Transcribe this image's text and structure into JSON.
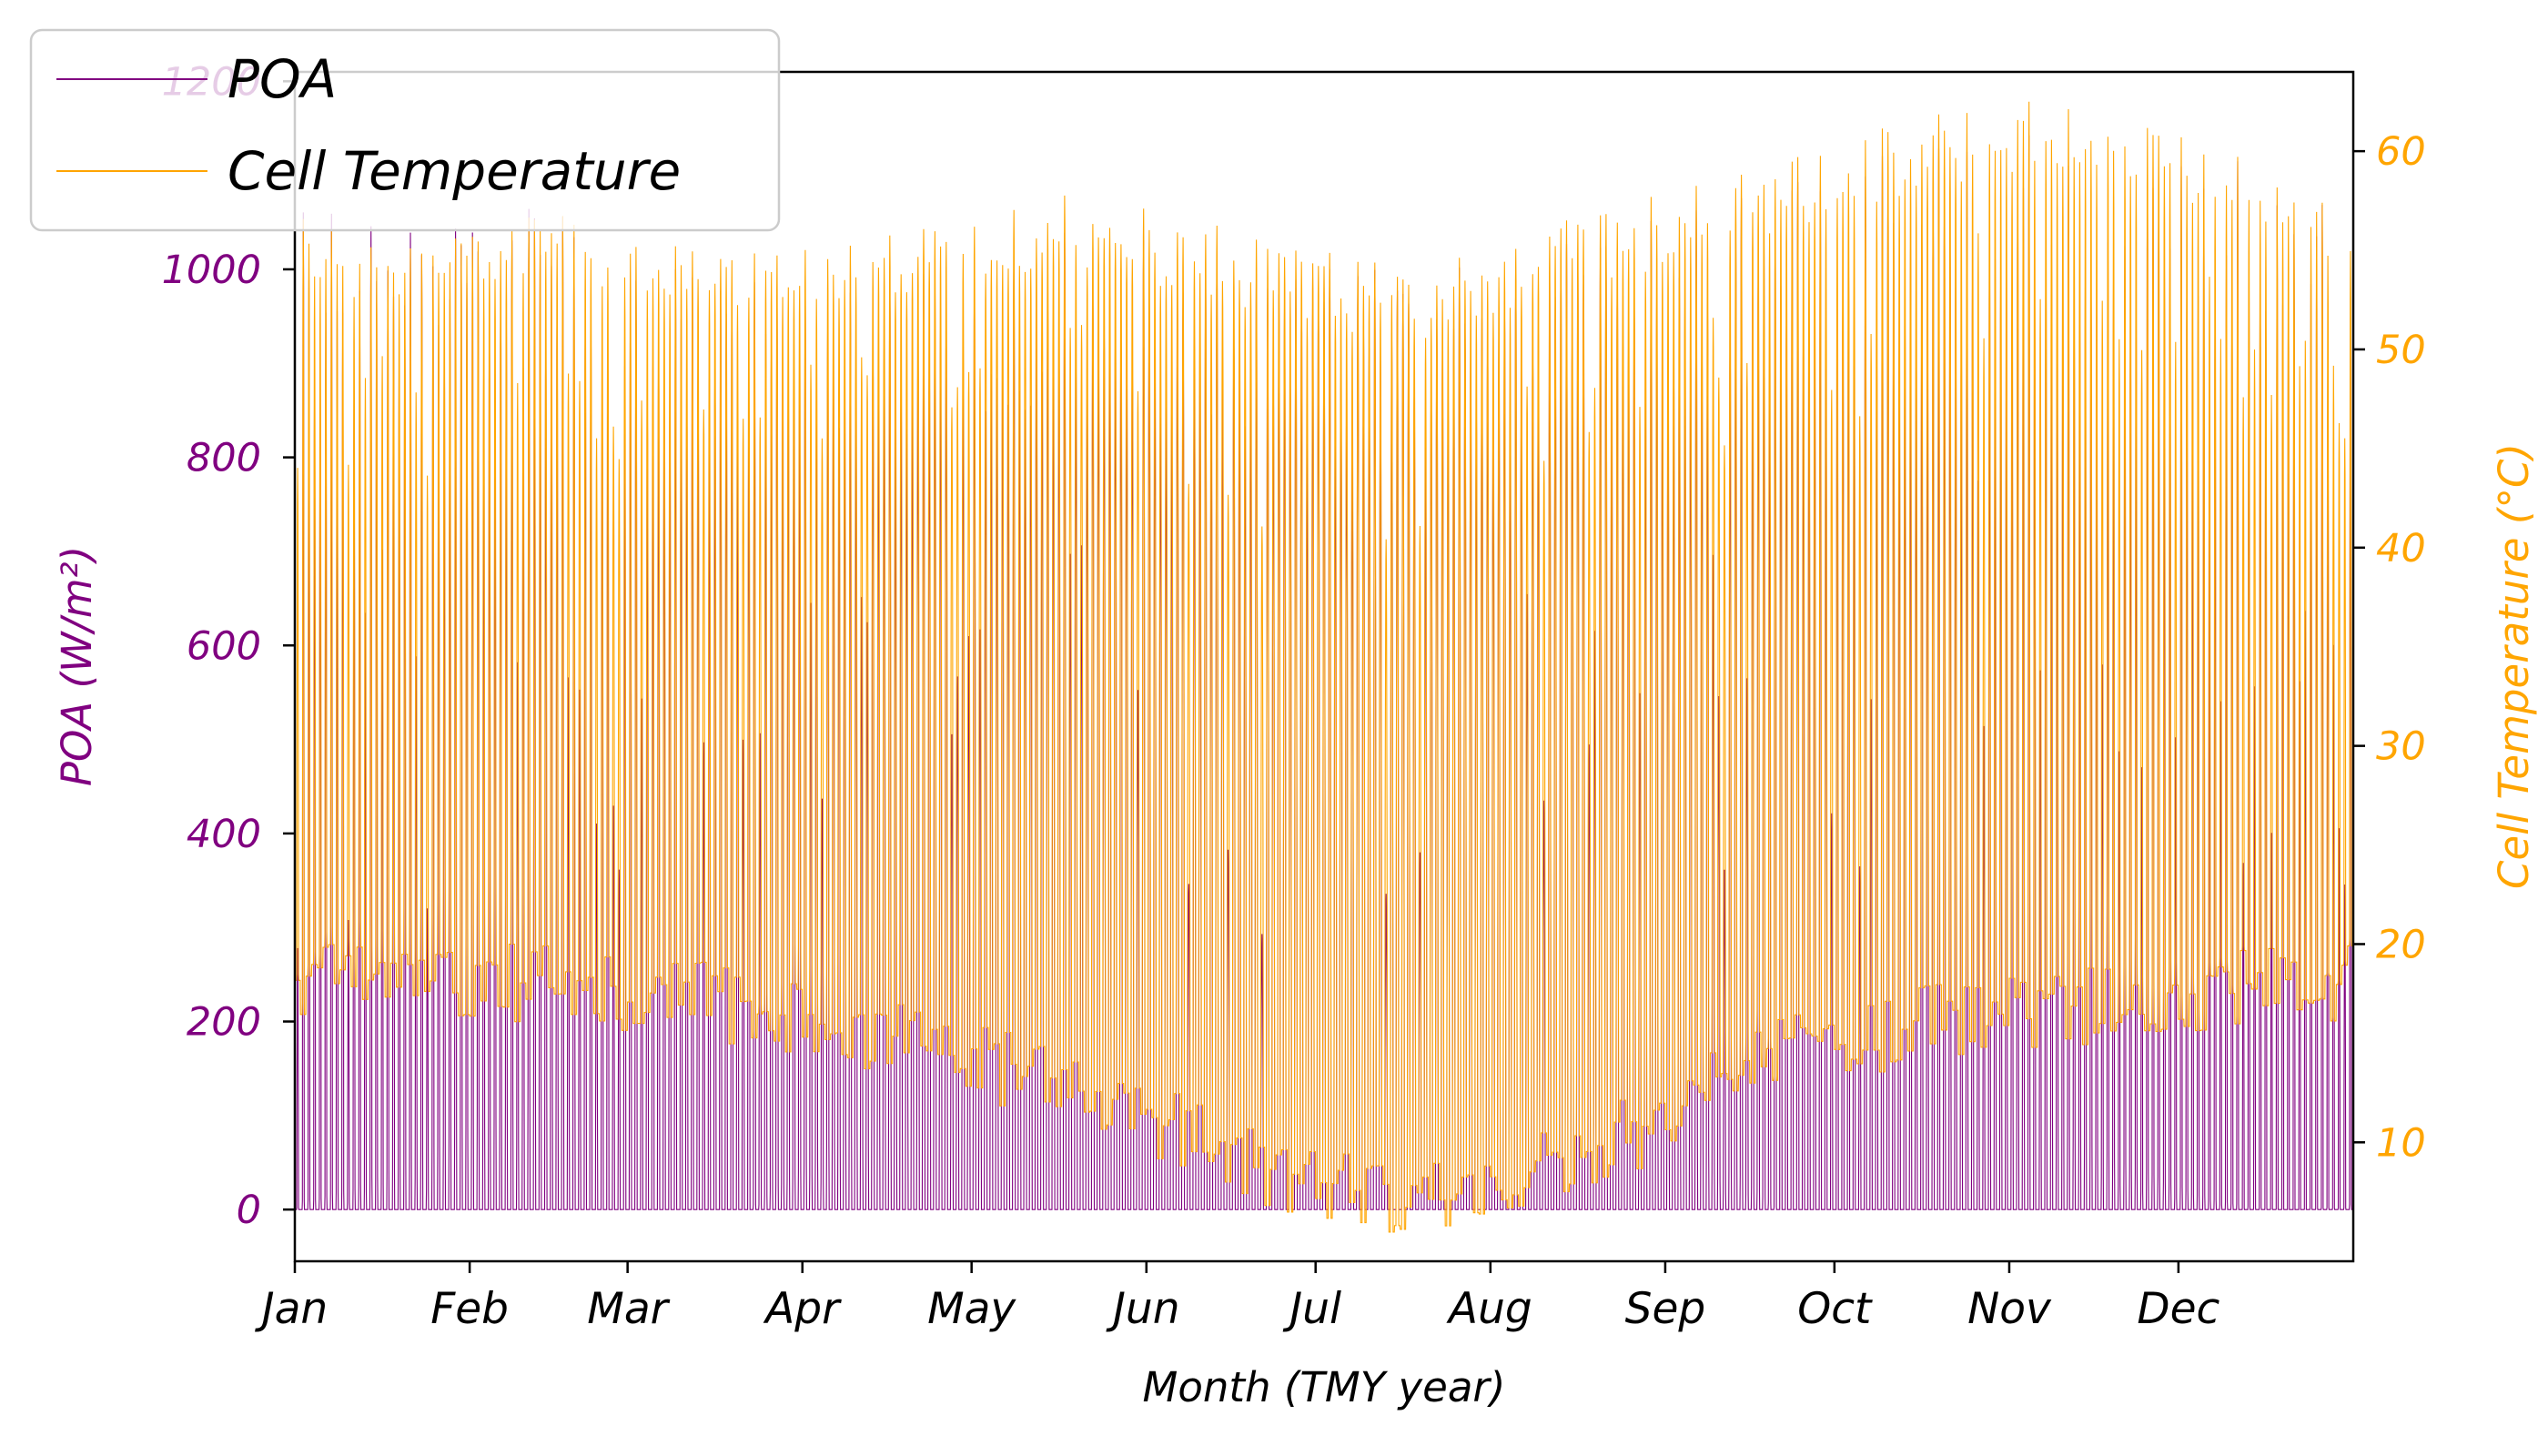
{
  "chart_data": {
    "type": "line",
    "title": "",
    "xlabel": "Month (TMY year)",
    "ylabel_left": "POA (W/m²)",
    "ylabel_right": "Cell Temperature (°C)",
    "x_range": [
      "Jan 1",
      "Dec 31"
    ],
    "x_ticks": [
      "Jan",
      "Feb",
      "Mar",
      "Apr",
      "May",
      "Jun",
      "Jul",
      "Aug",
      "Sep",
      "Oct",
      "Nov",
      "Dec"
    ],
    "ylim_left": [
      -55,
      1210
    ],
    "yticks_left": [
      0,
      200,
      400,
      600,
      800,
      1000,
      1200
    ],
    "ylim_right": [
      4,
      64
    ],
    "yticks_right": [
      10,
      20,
      30,
      40,
      50,
      60
    ],
    "grid": false,
    "legend_position": "top-left",
    "resolution": "hourly (8760 values per series)",
    "series": [
      {
        "name": "POA",
        "axis": "left",
        "color": "#800080",
        "monthly_peak_values": [
          1050,
          1070,
          1005,
          1000,
          1050,
          1010,
          1000,
          1040,
          1080,
          1140,
          1150,
          1110
        ],
        "monthly_overnight_values": [
          0,
          0,
          0,
          0,
          0,
          0,
          0,
          0,
          0,
          0,
          0,
          0
        ]
      },
      {
        "name": "Cell Temperature",
        "axis": "right",
        "color": "#FFA500",
        "monthly_peak_values": [
          55,
          57,
          55,
          56,
          58,
          56,
          54,
          57,
          59,
          62,
          63,
          59
        ],
        "monthly_overnight_values": [
          18,
          18,
          17,
          15,
          13,
          9,
          7,
          9,
          14,
          16,
          17,
          18
        ]
      }
    ]
  }
}
